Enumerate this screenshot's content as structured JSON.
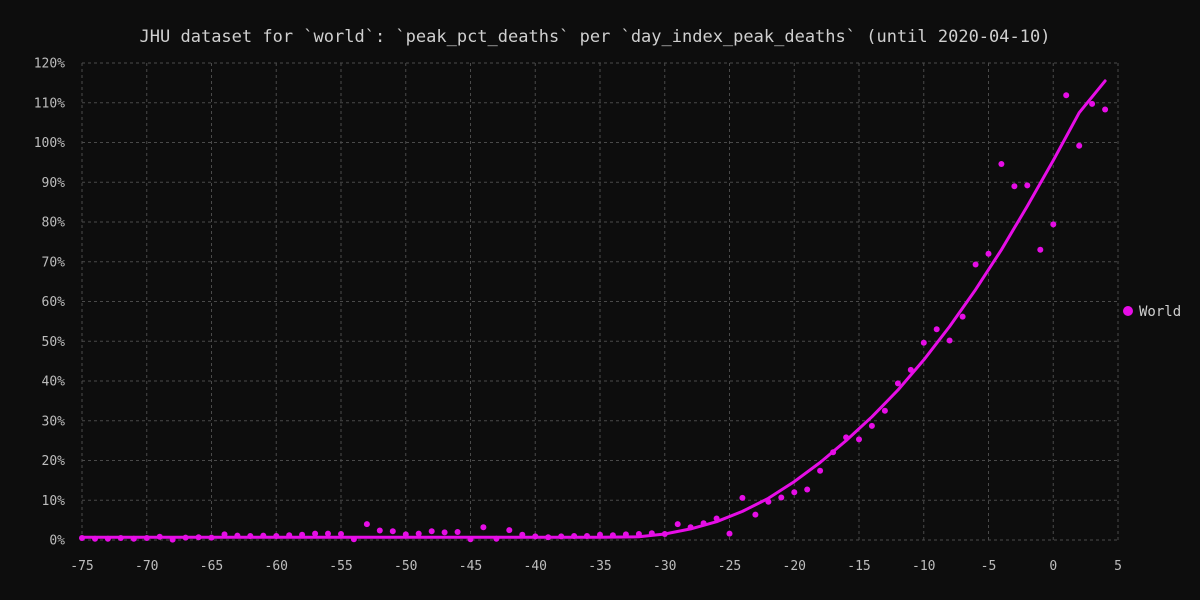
{
  "colors": {
    "background": "#0d0d0d",
    "series": "#e60de6",
    "grid": "#4a4a4a",
    "text": "#cfcfcf"
  },
  "chart_data": {
    "type": "scatter",
    "title": "JHU dataset for `world`: `peak_pct_deaths` per `day_index_peak_deaths` (until 2020-04-10)",
    "xlabel": "",
    "ylabel": "",
    "xlim": [
      -75,
      5
    ],
    "ylim": [
      0,
      120
    ],
    "grid": true,
    "legend_position": "right",
    "x_ticks": [
      -75,
      -70,
      -65,
      -60,
      -55,
      -50,
      -45,
      -40,
      -35,
      -30,
      -25,
      -20,
      -15,
      -10,
      -5,
      0,
      5
    ],
    "x_tick_labels": [
      "-75",
      "-70",
      "-65",
      "-60",
      "-55",
      "-50",
      "-45",
      "-40",
      "-35",
      "-30",
      "-25",
      "-20",
      "-15",
      "-10",
      "-5",
      "0",
      "5"
    ],
    "y_ticks": [
      0,
      10,
      20,
      30,
      40,
      50,
      60,
      70,
      80,
      90,
      100,
      110,
      120
    ],
    "y_tick_labels": [
      "0%",
      "10%",
      "20%",
      "30%",
      "40%",
      "50%",
      "60%",
      "70%",
      "80%",
      "90%",
      "100%",
      "110%",
      "120%"
    ],
    "series": [
      {
        "name": "World",
        "color": "#e60de6",
        "points": [
          [
            -75,
            0.5
          ],
          [
            -74,
            0.3
          ],
          [
            -73,
            0.3
          ],
          [
            -72,
            0.5
          ],
          [
            -71,
            0.3
          ],
          [
            -70,
            0.5
          ],
          [
            -69,
            0.8
          ],
          [
            -68,
            0.1
          ],
          [
            -67,
            0.6
          ],
          [
            -66,
            0.7
          ],
          [
            -65,
            0.6
          ],
          [
            -64,
            1.4
          ],
          [
            -63,
            1.1
          ],
          [
            -62,
            1.0
          ],
          [
            -61,
            1.1
          ],
          [
            -60,
            1.0
          ],
          [
            -59,
            1.2
          ],
          [
            -58,
            1.3
          ],
          [
            -57,
            1.6
          ],
          [
            -56,
            1.6
          ],
          [
            -55,
            1.5
          ],
          [
            -54,
            0.2
          ],
          [
            -53,
            4.0
          ],
          [
            -52,
            2.4
          ],
          [
            -51,
            2.2
          ],
          [
            -50,
            1.4
          ],
          [
            -49,
            1.6
          ],
          [
            -48,
            2.2
          ],
          [
            -47,
            1.9
          ],
          [
            -46,
            2.0
          ],
          [
            -45,
            0.2
          ],
          [
            -44,
            3.2
          ],
          [
            -43,
            0.3
          ],
          [
            -42,
            2.5
          ],
          [
            -41,
            1.3
          ],
          [
            -40,
            0.9
          ],
          [
            -39,
            0.7
          ],
          [
            -38,
            0.9
          ],
          [
            -37,
            1.0
          ],
          [
            -36,
            1.0
          ],
          [
            -35,
            1.3
          ],
          [
            -34,
            1.2
          ],
          [
            -33,
            1.4
          ],
          [
            -32,
            1.5
          ],
          [
            -31,
            1.7
          ],
          [
            -30,
            1.5
          ],
          [
            -29,
            4.0
          ],
          [
            -28,
            3.2
          ],
          [
            -27,
            4.2
          ],
          [
            -26,
            5.4
          ],
          [
            -25,
            1.6
          ],
          [
            -24,
            10.6
          ],
          [
            -23,
            6.4
          ],
          [
            -22,
            9.6
          ],
          [
            -21,
            10.7
          ],
          [
            -20,
            12.0
          ],
          [
            -19,
            12.7
          ],
          [
            -18,
            17.4
          ],
          [
            -17,
            22.1
          ],
          [
            -16,
            25.8
          ],
          [
            -15,
            25.3
          ],
          [
            -14,
            28.7
          ],
          [
            -13,
            32.5
          ],
          [
            -12,
            39.4
          ],
          [
            -11,
            42.8
          ],
          [
            -10,
            49.6
          ],
          [
            -9,
            53.0
          ],
          [
            -8,
            50.2
          ],
          [
            -7,
            56.2
          ],
          [
            -6,
            69.3
          ],
          [
            -5,
            72.0
          ],
          [
            -4,
            94.6
          ],
          [
            -3,
            89.0
          ],
          [
            -2,
            89.2
          ],
          [
            -1,
            73.0
          ],
          [
            0,
            79.4
          ],
          [
            1,
            111.9
          ],
          [
            2,
            99.2
          ],
          [
            3,
            109.7
          ],
          [
            4,
            108.3
          ]
        ],
        "fit": [
          [
            -75,
            0.7
          ],
          [
            -70,
            0.7
          ],
          [
            -65,
            0.7
          ],
          [
            -60,
            0.7
          ],
          [
            -55,
            0.7
          ],
          [
            -50,
            0.7
          ],
          [
            -45,
            0.7
          ],
          [
            -40,
            0.7
          ],
          [
            -35,
            0.7
          ],
          [
            -32,
            0.8
          ],
          [
            -30,
            1.5
          ],
          [
            -28,
            2.8
          ],
          [
            -26,
            4.6
          ],
          [
            -24,
            7.2
          ],
          [
            -22,
            10.5
          ],
          [
            -20,
            14.7
          ],
          [
            -18,
            19.5
          ],
          [
            -16,
            25.0
          ],
          [
            -14,
            31.0
          ],
          [
            -12,
            37.7
          ],
          [
            -10,
            45.3
          ],
          [
            -8,
            53.7
          ],
          [
            -6,
            63.0
          ],
          [
            -4,
            73.0
          ],
          [
            -2,
            84.0
          ],
          [
            0,
            95.5
          ],
          [
            2,
            107.5
          ],
          [
            4,
            115.5
          ]
        ]
      }
    ]
  }
}
